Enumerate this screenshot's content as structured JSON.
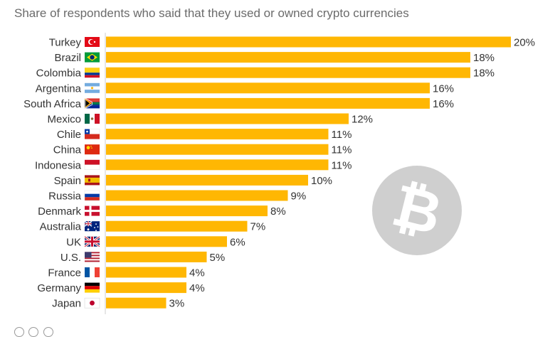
{
  "subtitle": "Share of respondents who said that they used or owned crypto currencies",
  "chart_data": {
    "type": "bar",
    "orientation": "horizontal",
    "categories": [
      "Turkey",
      "Brazil",
      "Colombia",
      "Argentina",
      "South Africa",
      "Mexico",
      "Chile",
      "China",
      "Indonesia",
      "Spain",
      "Russia",
      "Denmark",
      "Australia",
      "UK",
      "U.S.",
      "France",
      "Germany",
      "Japan"
    ],
    "values": [
      20,
      18,
      18,
      16,
      16,
      12,
      11,
      11,
      11,
      10,
      9,
      8,
      7,
      6,
      5,
      4,
      4,
      3
    ],
    "value_labels": [
      "20%",
      "18%",
      "18%",
      "16%",
      "16%",
      "12%",
      "11%",
      "11%",
      "11%",
      "10%",
      "9%",
      "8%",
      "7%",
      "6%",
      "5%",
      "4%",
      "4%",
      "3%"
    ],
    "flags": [
      "turkey-flag-icon",
      "brazil-flag-icon",
      "colombia-flag-icon",
      "argentina-flag-icon",
      "south-africa-flag-icon",
      "mexico-flag-icon",
      "chile-flag-icon",
      "china-flag-icon",
      "indonesia-flag-icon",
      "spain-flag-icon",
      "russia-flag-icon",
      "denmark-flag-icon",
      "australia-flag-icon",
      "uk-flag-icon",
      "us-flag-icon",
      "france-flag-icon",
      "germany-flag-icon",
      "japan-flag-icon"
    ],
    "xlim": [
      0,
      20
    ],
    "bar_color": "#FFB703",
    "legend": "none",
    "grid": false
  },
  "decorations": {
    "bitcoin_glyph": "₿",
    "bitcoin_icon": "bitcoin-logo-icon"
  }
}
